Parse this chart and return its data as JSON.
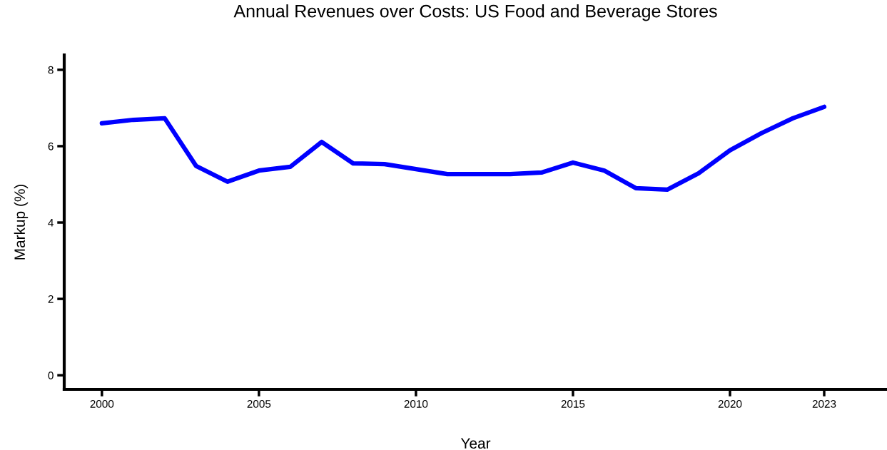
{
  "chart_data": {
    "type": "line",
    "title": "Annual Revenues over Costs: US Food and Beverage Stores",
    "xlabel": "Year",
    "ylabel": "Markup (%)",
    "x": [
      2000,
      2001,
      2002,
      2003,
      2004,
      2005,
      2006,
      2007,
      2008,
      2009,
      2010,
      2011,
      2012,
      2013,
      2014,
      2015,
      2016,
      2017,
      2018,
      2019,
      2020,
      2021,
      2022,
      2023
    ],
    "series": [
      {
        "color": "#0000ff",
        "values": [
          6.6,
          6.69,
          6.73,
          5.48,
          5.07,
          5.36,
          5.46,
          6.11,
          5.55,
          5.53,
          5.4,
          5.27,
          5.27,
          5.27,
          5.31,
          5.57,
          5.36,
          4.9,
          4.86,
          5.29,
          5.89,
          6.34,
          6.73,
          7.03
        ]
      }
    ],
    "xlim": [
      1998.8,
      2025.0
    ],
    "xticks": [
      2000,
      2005,
      2010,
      2015,
      2020,
      2023
    ],
    "ylim": [
      -0.37,
      8.39
    ],
    "yticks": [
      0,
      2,
      4,
      6,
      8
    ],
    "grid": false,
    "legend": false,
    "marker": "none",
    "line_style": "solid"
  }
}
